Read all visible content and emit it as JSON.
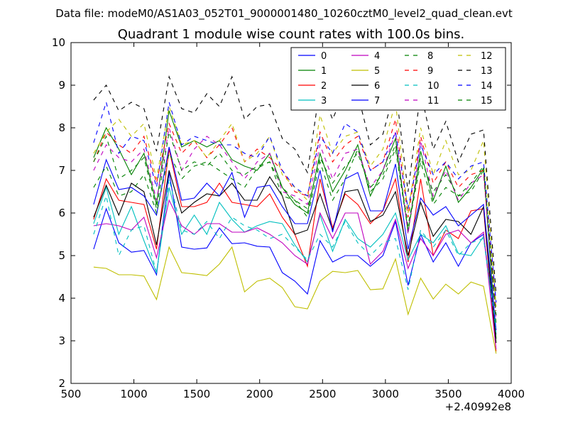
{
  "suptitle": "Data file: modeM0/AS1A03_052T01_9000001480_10260cztM0_level2_quad_clean.evt",
  "chart_data": {
    "type": "line",
    "title": "Quadrant 1 module wise count rates with 100.0s bins.",
    "xlabel": "",
    "ylabel": "",
    "x_offset_label": "+2.40992e8",
    "xlim": [
      500,
      4000
    ],
    "ylim": [
      2,
      10
    ],
    "xticks": [
      500,
      1000,
      1500,
      2000,
      2500,
      3000,
      3500,
      4000
    ],
    "yticks": [
      2,
      3,
      4,
      5,
      6,
      7,
      8,
      9,
      10
    ],
    "grid": false,
    "legend_position": "top-right",
    "legend_columns": 4,
    "x": [
      680,
      780,
      880,
      980,
      1080,
      1180,
      1280,
      1380,
      1480,
      1580,
      1680,
      1780,
      1880,
      1980,
      2080,
      2180,
      2280,
      2380,
      2480,
      2580,
      2680,
      2780,
      2880,
      2980,
      3080,
      3180,
      3280,
      3380,
      3480,
      3580,
      3680,
      3780,
      3880
    ],
    "series": [
      {
        "name": "0",
        "color": "#0000ff",
        "dash": "solid",
        "values": [
          5.15,
          6.1,
          5.3,
          5.08,
          5.12,
          4.55,
          6.95,
          5.2,
          5.15,
          5.18,
          5.65,
          5.28,
          5.3,
          5.22,
          5.2,
          4.6,
          4.4,
          4.1,
          5.35,
          4.85,
          5.0,
          5.0,
          4.75,
          5.0,
          5.8,
          4.3,
          5.5,
          4.85,
          5.3,
          4.75,
          5.3,
          5.5,
          3.15
        ]
      },
      {
        "name": "1",
        "color": "#008000",
        "dash": "solid",
        "values": [
          7.3,
          8.0,
          7.5,
          6.9,
          7.4,
          6.2,
          8.4,
          7.55,
          7.7,
          7.55,
          7.7,
          7.25,
          7.1,
          7.0,
          7.4,
          6.6,
          6.2,
          6.0,
          7.4,
          6.5,
          7.0,
          7.6,
          6.4,
          7.0,
          7.75,
          5.55,
          7.45,
          6.3,
          7.1,
          6.25,
          6.6,
          7.05,
          3.05
        ]
      },
      {
        "name": "2",
        "color": "#ff0000",
        "dash": "solid",
        "values": [
          5.85,
          6.8,
          6.3,
          6.25,
          6.2,
          5.15,
          7.5,
          6.15,
          6.15,
          6.25,
          6.7,
          6.25,
          6.2,
          6.15,
          6.45,
          5.9,
          5.5,
          4.75,
          6.8,
          5.65,
          6.45,
          6.2,
          5.75,
          6.05,
          6.8,
          4.85,
          6.8,
          5.0,
          5.6,
          5.4,
          6.05,
          6.1,
          2.75
        ]
      },
      {
        "name": "3",
        "color": "#00bfbf",
        "dash": "solid",
        "values": [
          5.75,
          6.6,
          5.5,
          6.15,
          5.35,
          4.6,
          6.6,
          5.5,
          5.95,
          5.5,
          6.25,
          5.85,
          5.55,
          5.7,
          5.8,
          5.75,
          5.25,
          4.85,
          5.95,
          5.1,
          5.85,
          5.4,
          5.2,
          5.5,
          6.0,
          4.9,
          5.5,
          5.3,
          5.7,
          5.05,
          5.0,
          5.45,
          3.2
        ]
      },
      {
        "name": "4",
        "color": "#bf00bf",
        "dash": "solid",
        "values": [
          5.7,
          5.75,
          5.7,
          5.6,
          5.9,
          4.95,
          6.3,
          5.7,
          5.5,
          5.75,
          5.75,
          5.55,
          5.55,
          5.65,
          5.5,
          5.3,
          5.0,
          4.8,
          6.0,
          5.4,
          6.0,
          6.0,
          4.8,
          5.1,
          5.85,
          4.7,
          5.4,
          5.0,
          5.5,
          5.6,
          5.3,
          5.55,
          2.8
        ]
      },
      {
        "name": "5",
        "color": "#bfbf00",
        "dash": "solid",
        "values": [
          4.73,
          4.7,
          4.55,
          4.55,
          4.52,
          3.97,
          5.2,
          4.6,
          4.57,
          4.53,
          4.8,
          5.2,
          4.15,
          4.4,
          4.47,
          4.25,
          3.8,
          3.75,
          4.4,
          4.63,
          4.6,
          4.65,
          4.2,
          4.22,
          4.92,
          3.62,
          4.47,
          3.98,
          4.33,
          4.1,
          4.38,
          4.28,
          2.7
        ]
      },
      {
        "name": "6",
        "color": "#000000",
        "dash": "solid",
        "values": [
          5.9,
          6.65,
          5.95,
          6.7,
          6.5,
          5.25,
          7.0,
          6.0,
          6.25,
          6.45,
          6.4,
          6.7,
          6.3,
          6.3,
          6.85,
          6.4,
          5.5,
          5.6,
          6.45,
          5.6,
          6.5,
          6.55,
          5.8,
          5.95,
          6.5,
          5.0,
          6.25,
          5.45,
          5.85,
          5.8,
          5.5,
          6.15,
          2.95
        ]
      },
      {
        "name": "7",
        "color": "#0000ff",
        "dash": "solid",
        "values": [
          6.2,
          7.25,
          6.55,
          6.6,
          6.4,
          5.95,
          7.55,
          6.3,
          6.35,
          6.7,
          6.4,
          6.95,
          5.9,
          6.6,
          6.65,
          6.15,
          5.75,
          5.75,
          7.0,
          5.55,
          6.8,
          6.95,
          6.05,
          6.05,
          7.15,
          5.15,
          6.35,
          5.95,
          6.15,
          5.7,
          5.95,
          6.2,
          3.25
        ]
      },
      {
        "name": "8",
        "color": "#008000",
        "dash": "dashed",
        "values": [
          6.6,
          7.1,
          6.4,
          6.5,
          6.9,
          6.0,
          7.4,
          6.8,
          7.1,
          7.2,
          7.0,
          6.8,
          6.6,
          7.05,
          7.2,
          6.4,
          6.3,
          5.9,
          7.2,
          6.3,
          6.8,
          7.5,
          6.5,
          6.8,
          7.5,
          5.6,
          7.2,
          6.2,
          6.6,
          6.4,
          6.5,
          7.0,
          3.4
        ]
      },
      {
        "name": "9",
        "color": "#ff0000",
        "dash": "dashed",
        "values": [
          7.2,
          7.9,
          7.6,
          7.4,
          7.8,
          6.7,
          8.1,
          7.4,
          7.7,
          7.3,
          7.6,
          8.0,
          7.2,
          7.5,
          7.3,
          7.0,
          6.5,
          6.4,
          7.9,
          7.2,
          7.6,
          7.8,
          7.0,
          7.2,
          8.2,
          5.9,
          7.8,
          6.7,
          7.2,
          6.6,
          6.9,
          7.0,
          3.7
        ]
      },
      {
        "name": "10",
        "color": "#00bfbf",
        "dash": "dashed",
        "values": [
          5.5,
          6.4,
          5.0,
          5.6,
          5.7,
          4.6,
          6.8,
          5.6,
          5.5,
          5.8,
          5.4,
          5.9,
          5.7,
          5.6,
          5.4,
          5.5,
          5.2,
          4.9,
          5.5,
          5.2,
          5.8,
          5.3,
          5.0,
          5.3,
          5.4,
          4.2,
          5.6,
          5.2,
          5.6,
          5.0,
          5.3,
          5.4,
          3.3
        ]
      },
      {
        "name": "11",
        "color": "#bf00bf",
        "dash": "dashed",
        "values": [
          7.0,
          7.6,
          7.3,
          7.2,
          7.5,
          6.3,
          8.0,
          7.0,
          7.5,
          7.8,
          7.6,
          7.2,
          6.8,
          7.2,
          7.4,
          6.5,
          6.4,
          6.2,
          7.6,
          6.8,
          7.4,
          7.5,
          6.6,
          7.0,
          7.9,
          5.5,
          7.7,
          6.4,
          7.0,
          6.3,
          6.7,
          6.9,
          3.5
        ]
      },
      {
        "name": "12",
        "color": "#bfbf00",
        "dash": "dashed",
        "values": [
          7.4,
          7.9,
          8.2,
          7.8,
          8.1,
          6.8,
          8.5,
          7.6,
          7.7,
          7.3,
          7.7,
          8.1,
          7.2,
          7.4,
          7.8,
          6.9,
          6.6,
          6.3,
          8.3,
          7.4,
          7.8,
          7.9,
          7.1,
          7.5,
          8.6,
          6.0,
          8.0,
          6.9,
          7.7,
          6.9,
          7.0,
          7.7,
          3.8
        ]
      },
      {
        "name": "13",
        "color": "#000000",
        "dash": "dashed",
        "values": [
          8.65,
          9.0,
          8.4,
          8.6,
          8.45,
          7.45,
          9.2,
          8.45,
          8.35,
          8.8,
          8.5,
          9.2,
          8.2,
          8.5,
          8.55,
          7.75,
          7.5,
          6.95,
          8.95,
          8.2,
          8.9,
          8.8,
          7.6,
          7.85,
          8.95,
          6.5,
          8.85,
          7.5,
          8.15,
          7.2,
          7.85,
          7.95,
          4.1
        ]
      },
      {
        "name": "14",
        "color": "#0000ff",
        "dash": "dashed",
        "values": [
          7.65,
          8.6,
          7.4,
          7.8,
          7.7,
          6.6,
          8.6,
          7.6,
          7.8,
          7.7,
          7.6,
          7.6,
          7.4,
          7.3,
          7.8,
          7.0,
          6.6,
          6.4,
          7.8,
          7.4,
          8.1,
          7.9,
          7.0,
          7.2,
          7.9,
          6.1,
          7.6,
          6.9,
          7.2,
          6.8,
          7.1,
          7.2,
          3.9
        ]
      },
      {
        "name": "15",
        "color": "#008000",
        "dash": "dashed",
        "values": [
          7.2,
          7.8,
          6.8,
          7.0,
          7.3,
          6.1,
          7.9,
          7.0,
          7.2,
          7.1,
          7.4,
          7.0,
          6.9,
          7.1,
          7.2,
          6.6,
          6.3,
          6.1,
          7.3,
          6.7,
          7.1,
          7.4,
          6.6,
          6.9,
          7.6,
          5.7,
          7.3,
          6.5,
          6.9,
          6.4,
          6.7,
          7.1,
          3.6
        ]
      }
    ]
  }
}
